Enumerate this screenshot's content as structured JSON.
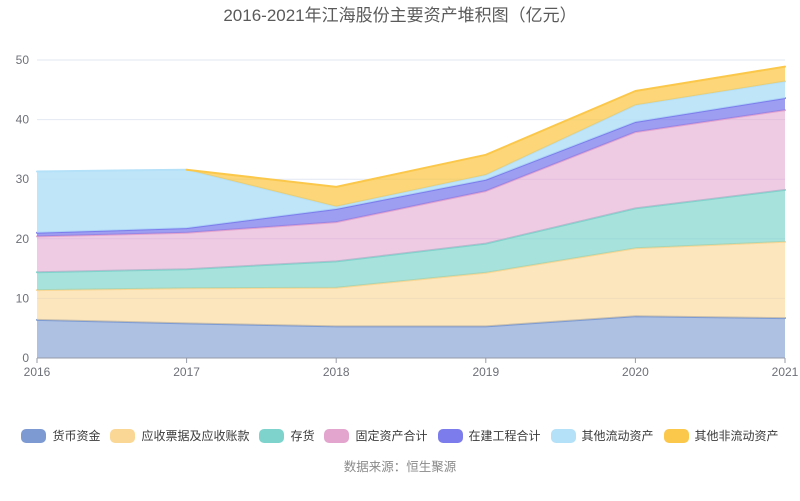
{
  "title": "2016-2021年江海股份主要资产堆积图（亿元）",
  "source": "数据来源：恒生聚源",
  "colors": {
    "background": "#FFFFFF",
    "grid": "#E2E8F3",
    "axis": "#969BA8",
    "tick_label": "#6E7079",
    "title_text": "#5A5A5A",
    "legend_text": "#3B3B3B",
    "source_text": "#8A8A8A"
  },
  "chart_data": {
    "type": "area",
    "stacked": true,
    "title": "2016-2021年江海股份主要资产堆积图（亿元）",
    "unit": "亿元",
    "x": [
      "2016",
      "2017",
      "2018",
      "2019",
      "2020",
      "2021"
    ],
    "ylim": [
      0,
      50
    ],
    "y_ticks": [
      0,
      10,
      20,
      30,
      40,
      50
    ],
    "grid": true,
    "legend_position": "bottom",
    "series": [
      {
        "name": "货币资金",
        "color": "#7D9BD2",
        "fill_opacity": 0.62,
        "values": [
          6.4,
          5.8,
          5.3,
          5.3,
          7.0,
          6.7
        ]
      },
      {
        "name": "应收票据及应收账款",
        "color": "#FAD794",
        "fill_opacity": 0.62,
        "values": [
          5.0,
          5.9,
          6.5,
          9.0,
          11.4,
          12.8
        ]
      },
      {
        "name": "存货",
        "color": "#7ED4CC",
        "fill_opacity": 0.68,
        "values": [
          3.0,
          3.2,
          4.4,
          4.9,
          6.7,
          8.7
        ]
      },
      {
        "name": "固定资产合计",
        "color": "#E3A4CE",
        "fill_opacity": 0.58,
        "values": [
          6.0,
          6.1,
          6.6,
          8.8,
          12.8,
          13.4
        ]
      },
      {
        "name": "在建工程合计",
        "color": "#7C7CEC",
        "fill_opacity": 0.75,
        "values": [
          0.6,
          0.8,
          2.2,
          1.9,
          1.7,
          2.0
        ]
      },
      {
        "name": "其他流动资产",
        "color": "#B4E0F8",
        "fill_opacity": 0.85,
        "values": [
          10.3,
          9.8,
          0.4,
          0.8,
          2.8,
          2.8
        ]
      },
      {
        "name": "其他非流动资产",
        "color": "#FBC84B",
        "fill_opacity": 0.75,
        "values": [
          null,
          0,
          3.3,
          3.4,
          2.4,
          2.5
        ]
      }
    ]
  }
}
